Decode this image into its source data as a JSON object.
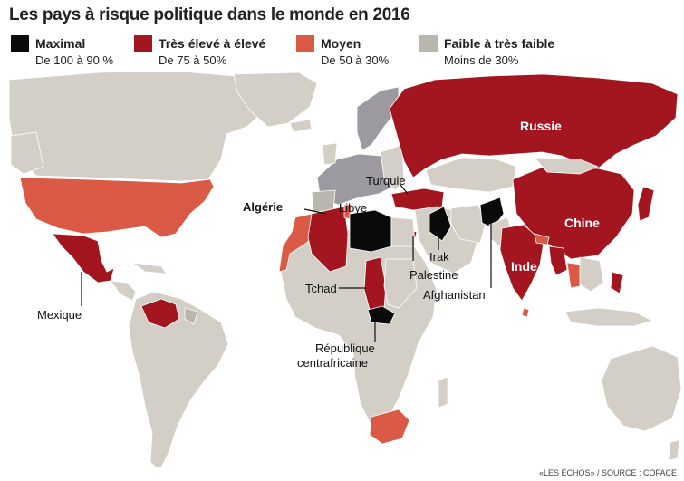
{
  "title": "Les pays à risque politique dans le monde en 2016",
  "legend": [
    {
      "title": "Maximal",
      "sub": "De 100 à 90 %",
      "color": "#0a0a0a"
    },
    {
      "title": "Très élevé à élevé",
      "sub": "De 75 à 50%",
      "color": "#a3161f"
    },
    {
      "title": "Moyen",
      "sub": "De 50 à 30%",
      "color": "#db5a45"
    },
    {
      "title": "Faible à très faible",
      "sub": "Moins de 30%",
      "color": "#b9b6ae"
    }
  ],
  "colors": {
    "base": "#d3cfc6",
    "mid": "#b9b6ae",
    "dark": "#9c9aa0",
    "ocean": "#ffffff",
    "maximal": "#0a0a0a",
    "eleve": "#a3161f",
    "moyen": "#db5a45"
  },
  "labels": {
    "russie": "Russie",
    "chine": "Chine",
    "inde": "Inde",
    "turquie": "Turquie",
    "libye": "Libye",
    "algerie": "Algérie",
    "irak": "Irak",
    "palestine": "Palestine",
    "afghanistan": "Afghanistan",
    "tchad": "Tchad",
    "mexique": "Mexique",
    "rca_1": "République",
    "rca_2": "centrafricaine"
  },
  "source": "«LES ÉCHOS» / SOURCE : COFACE"
}
